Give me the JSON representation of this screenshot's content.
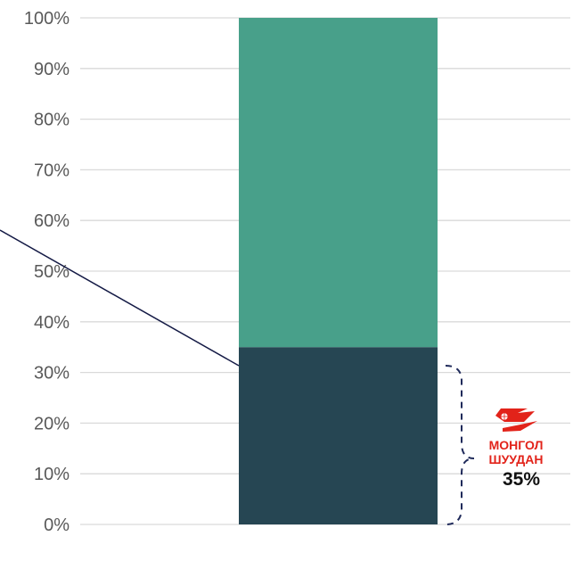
{
  "chart_data": {
    "type": "bar",
    "stacked": true,
    "categories": [
      ""
    ],
    "series": [
      {
        "values": [
          35
        ],
        "color": "#264653"
      },
      {
        "values": [
          65
        ],
        "color": "#48a08a"
      }
    ],
    "ylim": [
      0,
      100
    ],
    "yticks": [
      "0%",
      "10%",
      "20%",
      "30%",
      "40%",
      "50%",
      "60%",
      "70%",
      "80%",
      "90%",
      "100%"
    ],
    "grid": true,
    "annotation": {
      "logo_lines": [
        "МОНГОЛ",
        "ШУУДАН"
      ],
      "value_label": "35%"
    }
  },
  "colors": {
    "grid": "#d9d9d9",
    "tick_text": "#595959",
    "brace": "#1f2a5a",
    "leader_line": "#141a45",
    "logo_red": "#e2231a"
  }
}
